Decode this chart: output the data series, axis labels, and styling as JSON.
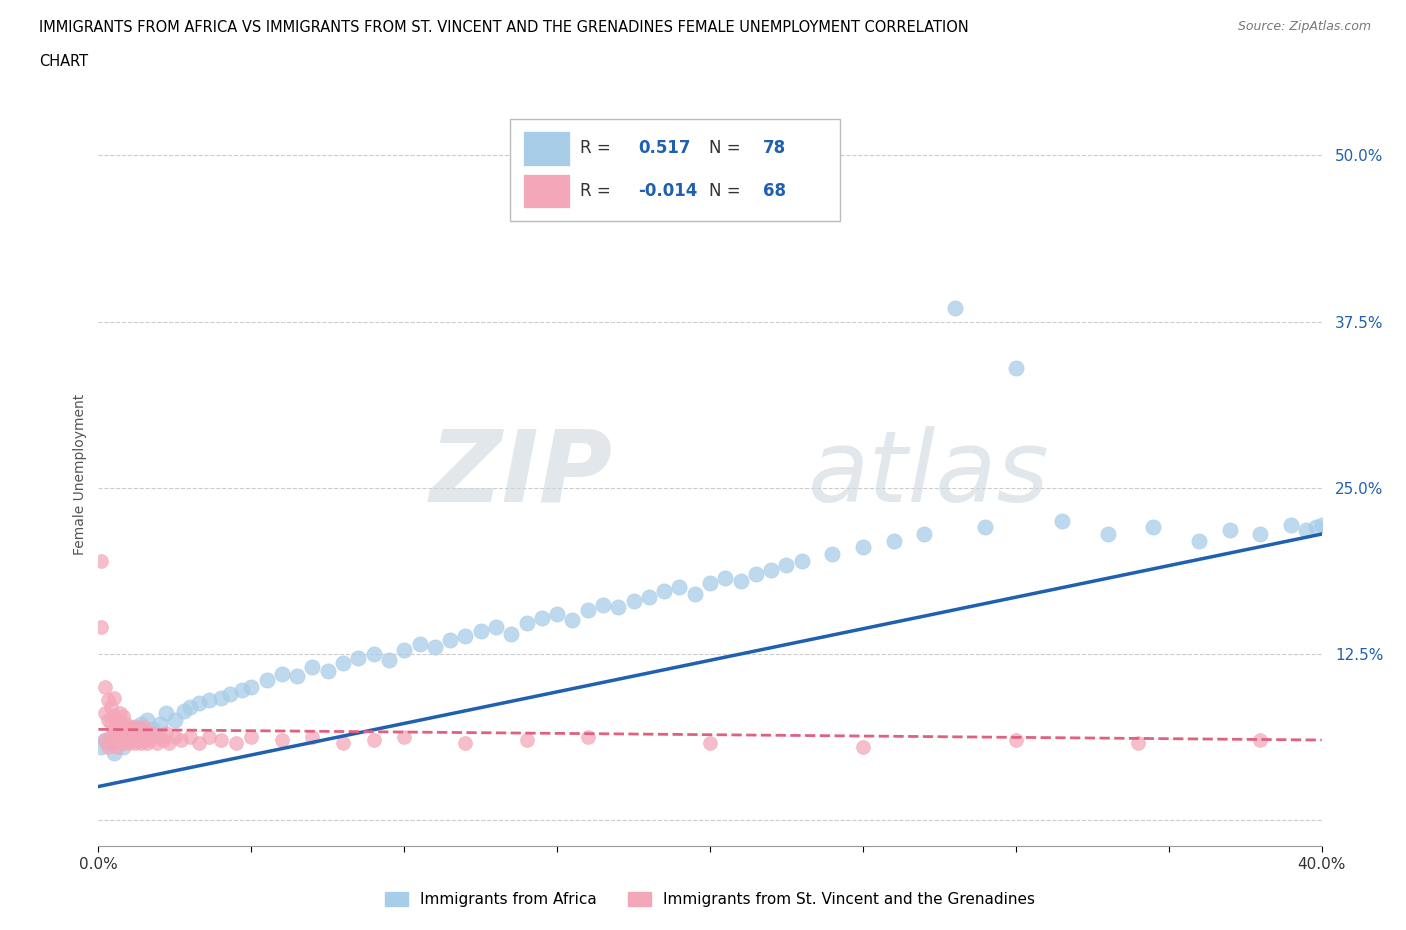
{
  "title_line1": "IMMIGRANTS FROM AFRICA VS IMMIGRANTS FROM ST. VINCENT AND THE GRENADINES FEMALE UNEMPLOYMENT CORRELATION",
  "title_line2": "CHART",
  "source": "Source: ZipAtlas.com",
  "ylabel": "Female Unemployment",
  "x_min": 0.0,
  "x_max": 0.4,
  "y_min": -0.02,
  "y_max": 0.54,
  "yticks": [
    0.0,
    0.125,
    0.25,
    0.375,
    0.5
  ],
  "ytick_labels": [
    "",
    "12.5%",
    "25.0%",
    "37.5%",
    "50.0%"
  ],
  "xticks": [
    0.0,
    0.05,
    0.1,
    0.15,
    0.2,
    0.25,
    0.3,
    0.35,
    0.4
  ],
  "xtick_labels": [
    "0.0%",
    "",
    "",
    "",
    "",
    "",
    "",
    "",
    "40.0%"
  ],
  "color_africa": "#a8cde8",
  "color_stvincent": "#f4a7b9",
  "trendline_africa_color": "#2060b0",
  "trendline_stvincent_color": "#e06080",
  "R_africa": 0.517,
  "N_africa": 78,
  "R_stvincent": -0.014,
  "N_stvincent": 68,
  "legend_label_africa": "Immigrants from Africa",
  "legend_label_stvincent": "Immigrants from St. Vincent and the Grenadines",
  "watermark_zip": "ZIP",
  "watermark_atlas": "atlas",
  "africa_x": [
    0.001,
    0.002,
    0.003,
    0.004,
    0.005,
    0.006,
    0.007,
    0.008,
    0.009,
    0.01,
    0.012,
    0.014,
    0.016,
    0.018,
    0.02,
    0.022,
    0.025,
    0.028,
    0.03,
    0.033,
    0.036,
    0.04,
    0.043,
    0.047,
    0.05,
    0.055,
    0.06,
    0.065,
    0.07,
    0.075,
    0.08,
    0.085,
    0.09,
    0.095,
    0.1,
    0.105,
    0.11,
    0.115,
    0.12,
    0.125,
    0.13,
    0.135,
    0.14,
    0.145,
    0.15,
    0.155,
    0.16,
    0.165,
    0.17,
    0.175,
    0.18,
    0.185,
    0.19,
    0.195,
    0.2,
    0.205,
    0.21,
    0.215,
    0.22,
    0.225,
    0.23,
    0.24,
    0.25,
    0.26,
    0.27,
    0.28,
    0.29,
    0.3,
    0.315,
    0.33,
    0.345,
    0.36,
    0.37,
    0.38,
    0.39,
    0.395,
    0.398,
    0.4
  ],
  "africa_y": [
    0.055,
    0.06,
    0.058,
    0.062,
    0.05,
    0.065,
    0.06,
    0.055,
    0.068,
    0.062,
    0.07,
    0.072,
    0.075,
    0.068,
    0.072,
    0.08,
    0.075,
    0.082,
    0.085,
    0.088,
    0.09,
    0.092,
    0.095,
    0.098,
    0.1,
    0.105,
    0.11,
    0.108,
    0.115,
    0.112,
    0.118,
    0.122,
    0.125,
    0.12,
    0.128,
    0.132,
    0.13,
    0.135,
    0.138,
    0.142,
    0.145,
    0.14,
    0.148,
    0.152,
    0.155,
    0.15,
    0.158,
    0.162,
    0.16,
    0.165,
    0.168,
    0.172,
    0.175,
    0.17,
    0.178,
    0.182,
    0.18,
    0.185,
    0.188,
    0.192,
    0.195,
    0.2,
    0.205,
    0.21,
    0.215,
    0.385,
    0.22,
    0.34,
    0.225,
    0.215,
    0.22,
    0.21,
    0.218,
    0.215,
    0.222,
    0.218,
    0.22,
    0.222
  ],
  "stvincent_x": [
    0.001,
    0.001,
    0.002,
    0.002,
    0.002,
    0.003,
    0.003,
    0.003,
    0.004,
    0.004,
    0.004,
    0.005,
    0.005,
    0.005,
    0.005,
    0.006,
    0.006,
    0.006,
    0.007,
    0.007,
    0.007,
    0.008,
    0.008,
    0.008,
    0.009,
    0.009,
    0.01,
    0.01,
    0.011,
    0.011,
    0.012,
    0.012,
    0.013,
    0.013,
    0.014,
    0.014,
    0.015,
    0.015,
    0.016,
    0.016,
    0.017,
    0.018,
    0.019,
    0.02,
    0.021,
    0.022,
    0.023,
    0.025,
    0.027,
    0.03,
    0.033,
    0.036,
    0.04,
    0.045,
    0.05,
    0.06,
    0.07,
    0.08,
    0.09,
    0.1,
    0.12,
    0.14,
    0.16,
    0.2,
    0.25,
    0.3,
    0.34,
    0.38
  ],
  "stvincent_y": [
    0.195,
    0.145,
    0.06,
    0.08,
    0.1,
    0.055,
    0.075,
    0.09,
    0.062,
    0.072,
    0.085,
    0.058,
    0.068,
    0.078,
    0.092,
    0.055,
    0.065,
    0.075,
    0.06,
    0.07,
    0.08,
    0.058,
    0.068,
    0.078,
    0.062,
    0.072,
    0.058,
    0.068,
    0.06,
    0.07,
    0.058,
    0.068,
    0.06,
    0.07,
    0.058,
    0.068,
    0.06,
    0.07,
    0.058,
    0.065,
    0.06,
    0.065,
    0.058,
    0.062,
    0.06,
    0.065,
    0.058,
    0.062,
    0.06,
    0.062,
    0.058,
    0.062,
    0.06,
    0.058,
    0.062,
    0.06,
    0.062,
    0.058,
    0.06,
    0.062,
    0.058,
    0.06,
    0.062,
    0.058,
    0.055,
    0.06,
    0.058,
    0.06
  ],
  "africa_trendline_x": [
    0.0,
    0.4
  ],
  "africa_trendline_y": [
    0.025,
    0.215
  ],
  "stvincent_trendline_x": [
    0.0,
    0.4
  ],
  "stvincent_trendline_y": [
    0.068,
    0.06
  ]
}
